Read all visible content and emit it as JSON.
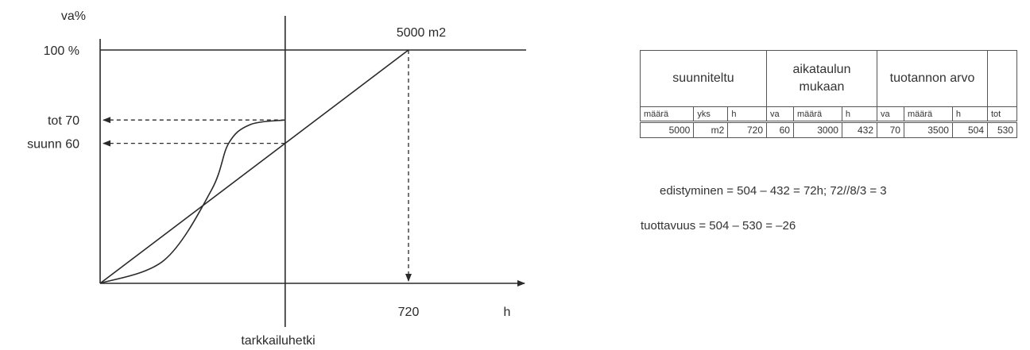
{
  "chart_data": {
    "type": "line",
    "ylabel": "va%",
    "xlabel": "h",
    "xlim": [
      0,
      720
    ],
    "ylim": [
      0,
      100
    ],
    "top_label": "5000 m2",
    "y_ticks": [
      {
        "value": 100,
        "label": "100 %"
      },
      {
        "value": 70,
        "label": "tot 70"
      },
      {
        "value": 60,
        "label": "suunn 60"
      }
    ],
    "x_ticks": [
      {
        "value": 720,
        "label": "720"
      }
    ],
    "observation": {
      "x": 432,
      "label": "tarkkailuhetki"
    },
    "series": [
      {
        "style": "straight",
        "points": [
          [
            0,
            0
          ],
          [
            720,
            100
          ]
        ]
      },
      {
        "style": "s-curve",
        "points": [
          [
            0,
            0
          ],
          [
            150,
            10
          ],
          [
            260,
            40
          ],
          [
            300,
            60
          ],
          [
            350,
            68
          ],
          [
            432,
            70
          ]
        ]
      }
    ],
    "guides": [
      {
        "from": [
          432,
          70
        ],
        "to_axis": "y",
        "value": 70
      },
      {
        "from": [
          432,
          60
        ],
        "to_axis": "y",
        "value": 60
      },
      {
        "from": [
          720,
          100
        ],
        "to_axis": "x",
        "value": 720
      }
    ]
  },
  "table": {
    "groups": [
      "suunniteltu",
      "aikataulun mukaan",
      "tuotannon arvo",
      ""
    ],
    "headers": [
      "määrä",
      "yks",
      "h",
      "va",
      "määrä",
      "h",
      "va",
      "määrä",
      "h",
      "tot"
    ],
    "row": [
      "5000",
      "m2",
      "720",
      "60",
      "3000",
      "432",
      "70",
      "3500",
      "504",
      "530"
    ]
  },
  "formulas": {
    "edistyminen": "edistyminen = 504 – 432 = 72h;  72//8/3 = 3",
    "tuottavuus": "tuottavuus = 504 – 530 = –26"
  }
}
